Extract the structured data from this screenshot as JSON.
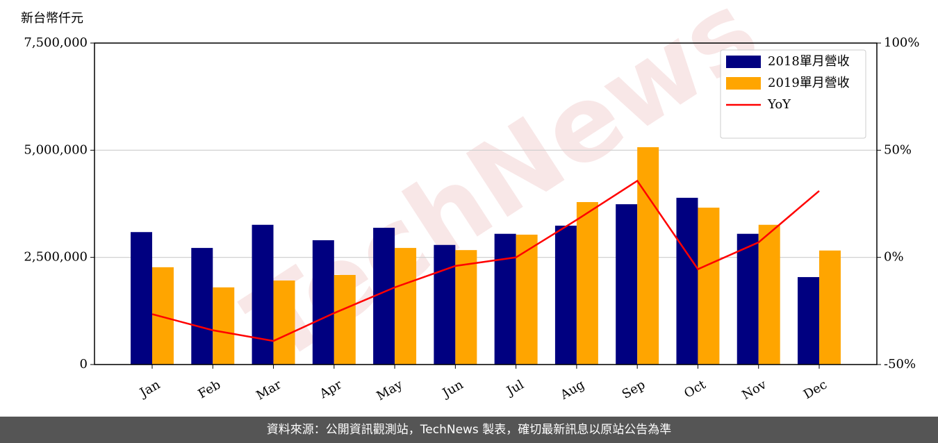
{
  "chart_data": {
    "type": "bar",
    "y_label": "新台幣仟元",
    "watermark": "TechNews",
    "footer": "資料來源：公開資訊觀測站，TechNews 製表，確切最新訊息以原站公告為準",
    "categories": [
      "Jan",
      "Feb",
      "Mar",
      "Apr",
      "May",
      "Jun",
      "Jul",
      "Aug",
      "Sep",
      "Oct",
      "Nov",
      "Dec"
    ],
    "series": [
      {
        "name": "2018單月營收",
        "color": "#000080",
        "values": [
          3090000,
          2720000,
          3260000,
          2900000,
          3190000,
          2790000,
          3050000,
          3240000,
          3740000,
          3890000,
          3050000,
          2040000
        ]
      },
      {
        "name": "2019單月營收",
        "color": "#ffa500",
        "values": [
          2270000,
          1800000,
          1960000,
          2090000,
          2720000,
          2670000,
          3030000,
          3790000,
          5070000,
          3660000,
          3260000,
          2660000
        ]
      },
      {
        "name": "YoY",
        "color": "#ff0000",
        "type": "line",
        "axis": "y2",
        "values": [
          -26.5,
          -34,
          -39,
          -26,
          -14,
          -4,
          0,
          17.5,
          35.7,
          -5.5,
          7,
          31
        ]
      }
    ],
    "ylim": [
      0,
      7500000
    ],
    "yticks": [
      {
        "value": 0,
        "label": "0"
      },
      {
        "value": 2500000,
        "label": "2,500,000"
      },
      {
        "value": 5000000,
        "label": "5,000,000"
      },
      {
        "value": 7500000,
        "label": "7,500,000"
      }
    ],
    "y2lim": [
      -50,
      100
    ],
    "y2ticks": [
      {
        "value": -50,
        "label": "-50%"
      },
      {
        "value": 0,
        "label": "0%"
      },
      {
        "value": 50,
        "label": "50%"
      },
      {
        "value": 100,
        "label": "100%"
      }
    ],
    "grid": true,
    "legend": "upper right"
  }
}
